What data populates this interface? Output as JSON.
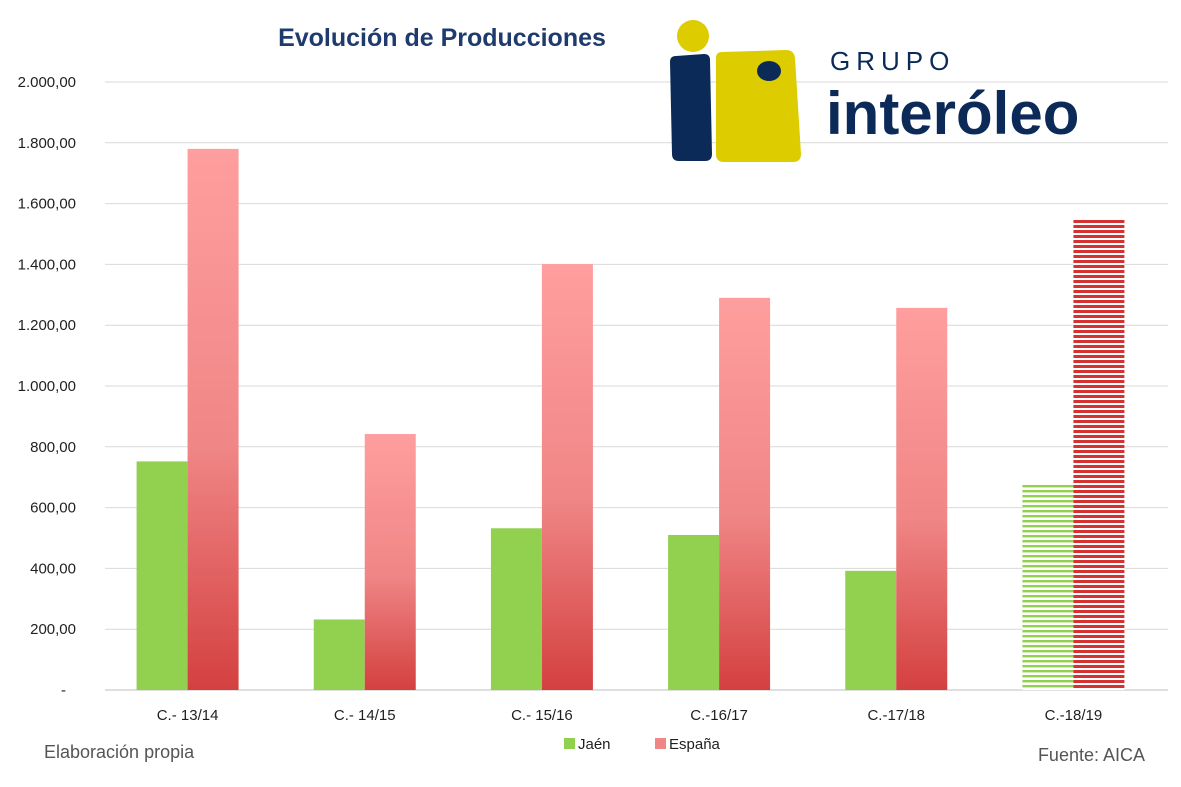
{
  "chart_data": {
    "type": "bar",
    "title": "Evolución de Producciones",
    "categories": [
      "C.- 13/14",
      "C.- 14/15",
      "C.- 15/16",
      "C.-16/17",
      "C.-17/18",
      "C.-18/19"
    ],
    "series": [
      {
        "name": "Jaén",
        "values": [
          752,
          232,
          532,
          510,
          392,
          682
        ],
        "color": "#92d050"
      },
      {
        "name": "España",
        "values": [
          1780,
          842,
          1401,
          1290,
          1257,
          1550
        ],
        "color": "#e46c6c"
      }
    ],
    "y_ticks": [
      "-",
      "200,00",
      "400,00",
      "600,00",
      "800,00",
      "1.000,00",
      "1.200,00",
      "1.400,00",
      "1.600,00",
      "1.800,00",
      "2.000,00"
    ],
    "ylim": [
      0,
      2000
    ],
    "grid": true,
    "legend_position": "bottom",
    "estimated_category": "C.-18/19"
  },
  "logo": {
    "line1": "GRUPO",
    "line2": "interóleo",
    "yellow": "#ddcc00",
    "navy": "#0b2a57"
  },
  "footer": {
    "left": "Elaboración propia",
    "right": "Fuente: AICA"
  }
}
